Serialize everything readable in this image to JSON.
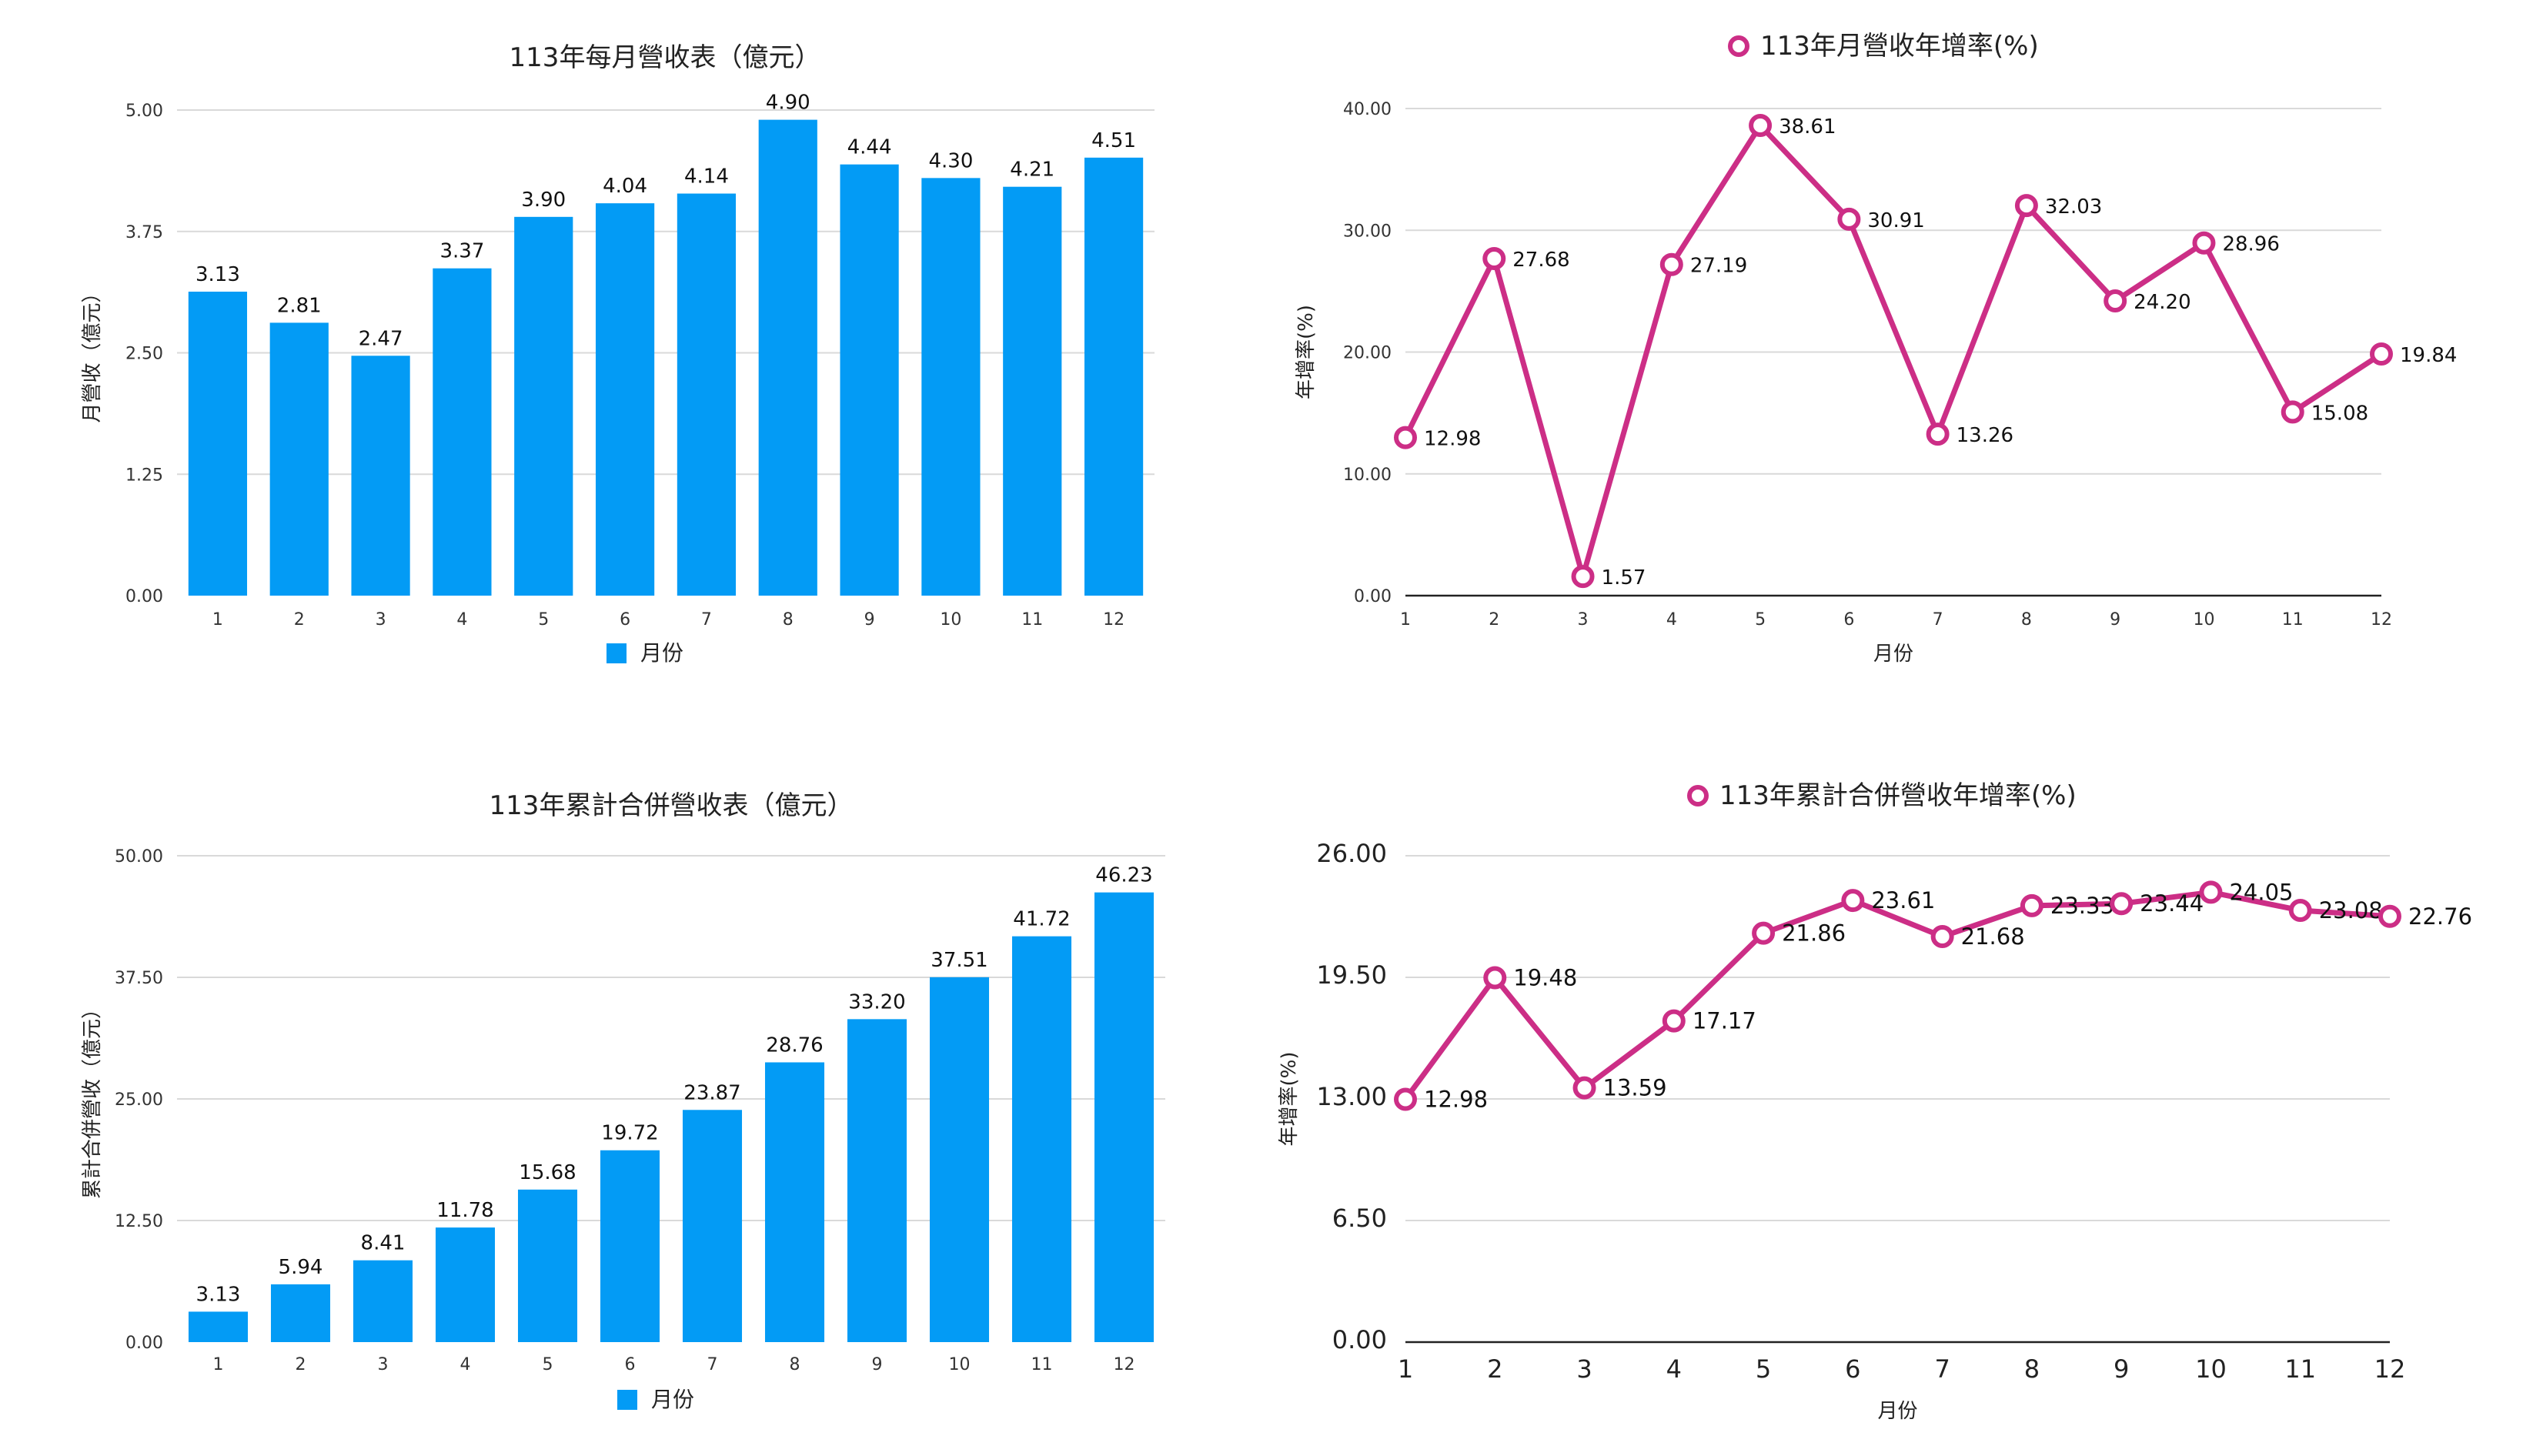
{
  "colors": {
    "bar": "#039BF5",
    "line": "#CC2E86",
    "grid": "#D9D9D9",
    "text": "#222222"
  },
  "chart_data": [
    {
      "type": "bar",
      "title": "113年每月營收表（億元）",
      "xlabel": "",
      "ylabel": "月營收（億元）",
      "categories": [
        "1",
        "2",
        "3",
        "4",
        "5",
        "6",
        "7",
        "8",
        "9",
        "10",
        "11",
        "12"
      ],
      "values": [
        3.13,
        2.81,
        2.47,
        3.37,
        3.9,
        4.04,
        4.14,
        4.9,
        4.44,
        4.3,
        4.21,
        4.51
      ],
      "value_labels": [
        "3.13",
        "2.81",
        "2.47",
        "3.37",
        "3.90",
        "4.04",
        "4.14",
        "4.90",
        "4.44",
        "4.30",
        "4.21",
        "4.51"
      ],
      "yticks": [
        "0.00",
        "1.25",
        "2.50",
        "3.75",
        "5.00"
      ],
      "ylim": [
        0,
        5
      ],
      "grid": true,
      "legend": [
        "月份"
      ],
      "legend_position": "bottom"
    },
    {
      "type": "line",
      "title": "113年月營收年增率(%)",
      "xlabel": "月份",
      "ylabel": "年增率(%)",
      "categories": [
        "1",
        "2",
        "3",
        "4",
        "5",
        "6",
        "7",
        "8",
        "9",
        "10",
        "11",
        "12"
      ],
      "values": [
        12.98,
        27.68,
        1.57,
        27.19,
        38.61,
        30.91,
        13.26,
        32.03,
        24.2,
        28.96,
        15.08,
        19.84
      ],
      "value_labels": [
        "12.98",
        "27.68",
        "1.57",
        "27.19",
        "38.61",
        "30.91",
        "13.26",
        "32.03",
        "24.20",
        "28.96",
        "15.08",
        "19.84"
      ],
      "yticks": [
        "0.00",
        "10.00",
        "20.00",
        "30.00",
        "40.00"
      ],
      "ylim": [
        0,
        40
      ],
      "grid": true,
      "legend": [
        "113年月營收年增率(%)"
      ],
      "legend_position": "top"
    },
    {
      "type": "bar",
      "title": "113年累計合併營收表（億元）",
      "xlabel": "",
      "ylabel": "累計合併營收（億元）",
      "categories": [
        "1",
        "2",
        "3",
        "4",
        "5",
        "6",
        "7",
        "8",
        "9",
        "10",
        "11",
        "12"
      ],
      "values": [
        3.13,
        5.94,
        8.41,
        11.78,
        15.68,
        19.72,
        23.87,
        28.76,
        33.2,
        37.51,
        41.72,
        46.23
      ],
      "value_labels": [
        "3.13",
        "5.94",
        "8.41",
        "11.78",
        "15.68",
        "19.72",
        "23.87",
        "28.76",
        "33.20",
        "37.51",
        "41.72",
        "46.23"
      ],
      "yticks": [
        "0.00",
        "12.50",
        "25.00",
        "37.50",
        "50.00"
      ],
      "ylim": [
        0,
        50
      ],
      "grid": true,
      "legend": [
        "月份"
      ],
      "legend_position": "bottom"
    },
    {
      "type": "line",
      "title": "113年累計合併營收年增率(%)",
      "xlabel": "月份",
      "ylabel": "年增率(%)",
      "categories": [
        "1",
        "2",
        "3",
        "4",
        "5",
        "6",
        "7",
        "8",
        "9",
        "10",
        "11",
        "12"
      ],
      "values": [
        12.98,
        19.48,
        13.59,
        17.17,
        21.86,
        23.61,
        21.68,
        23.33,
        23.44,
        24.05,
        23.08,
        22.76
      ],
      "value_labels": [
        "12.98",
        "19.48",
        "13.59",
        "17.17",
        "21.86",
        "23.61",
        "21.68",
        "23.33",
        "23.44",
        "24.05",
        "23.08",
        "22.76"
      ],
      "yticks": [
        "0.00",
        "6.50",
        "13.00",
        "19.50",
        "26.00"
      ],
      "ylim": [
        0,
        26
      ],
      "grid": true,
      "legend": [
        "113年累計合併營收年增率(%)"
      ],
      "legend_position": "top"
    }
  ]
}
